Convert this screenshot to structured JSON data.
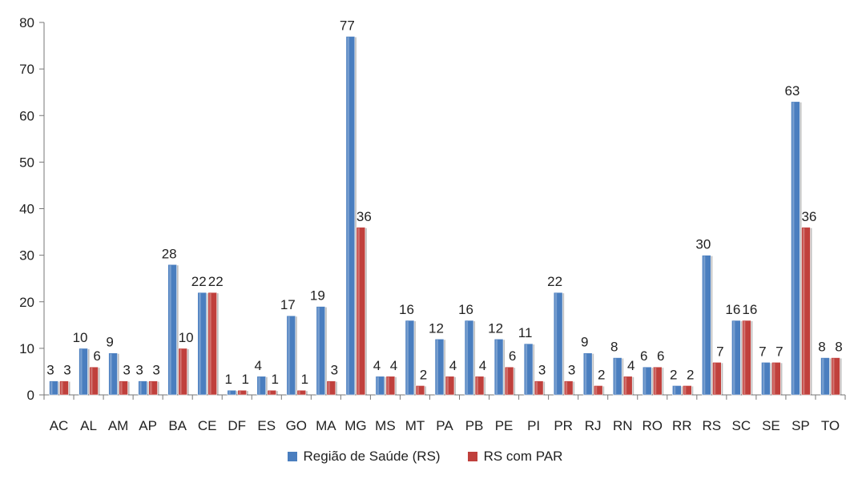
{
  "chart_data": {
    "type": "bar",
    "title": "",
    "xlabel": "",
    "ylabel": "",
    "ylim": [
      0,
      80
    ],
    "yticks": [
      0,
      10,
      20,
      30,
      40,
      50,
      60,
      70,
      80
    ],
    "grid": false,
    "legend_position": "bottom",
    "categories": [
      "AC",
      "AL",
      "AM",
      "AP",
      "BA",
      "CE",
      "DF",
      "ES",
      "GO",
      "MA",
      "MG",
      "MS",
      "MT",
      "PA",
      "PB",
      "PE",
      "PI",
      "PR",
      "RJ",
      "RN",
      "RO",
      "RR",
      "RS",
      "SC",
      "SE",
      "SP",
      "TO"
    ],
    "series": [
      {
        "name": "Região de Saúde (RS)",
        "color": "#4a7ebf",
        "values": [
          3,
          10,
          9,
          3,
          28,
          22,
          1,
          4,
          17,
          19,
          77,
          4,
          16,
          12,
          16,
          12,
          11,
          22,
          9,
          8,
          6,
          2,
          30,
          16,
          7,
          63,
          8
        ]
      },
      {
        "name": "RS com PAR",
        "color": "#c0403c",
        "values": [
          3,
          6,
          3,
          3,
          10,
          22,
          1,
          1,
          1,
          3,
          36,
          4,
          2,
          4,
          4,
          6,
          3,
          3,
          2,
          4,
          6,
          2,
          7,
          16,
          7,
          36,
          8
        ]
      }
    ]
  }
}
